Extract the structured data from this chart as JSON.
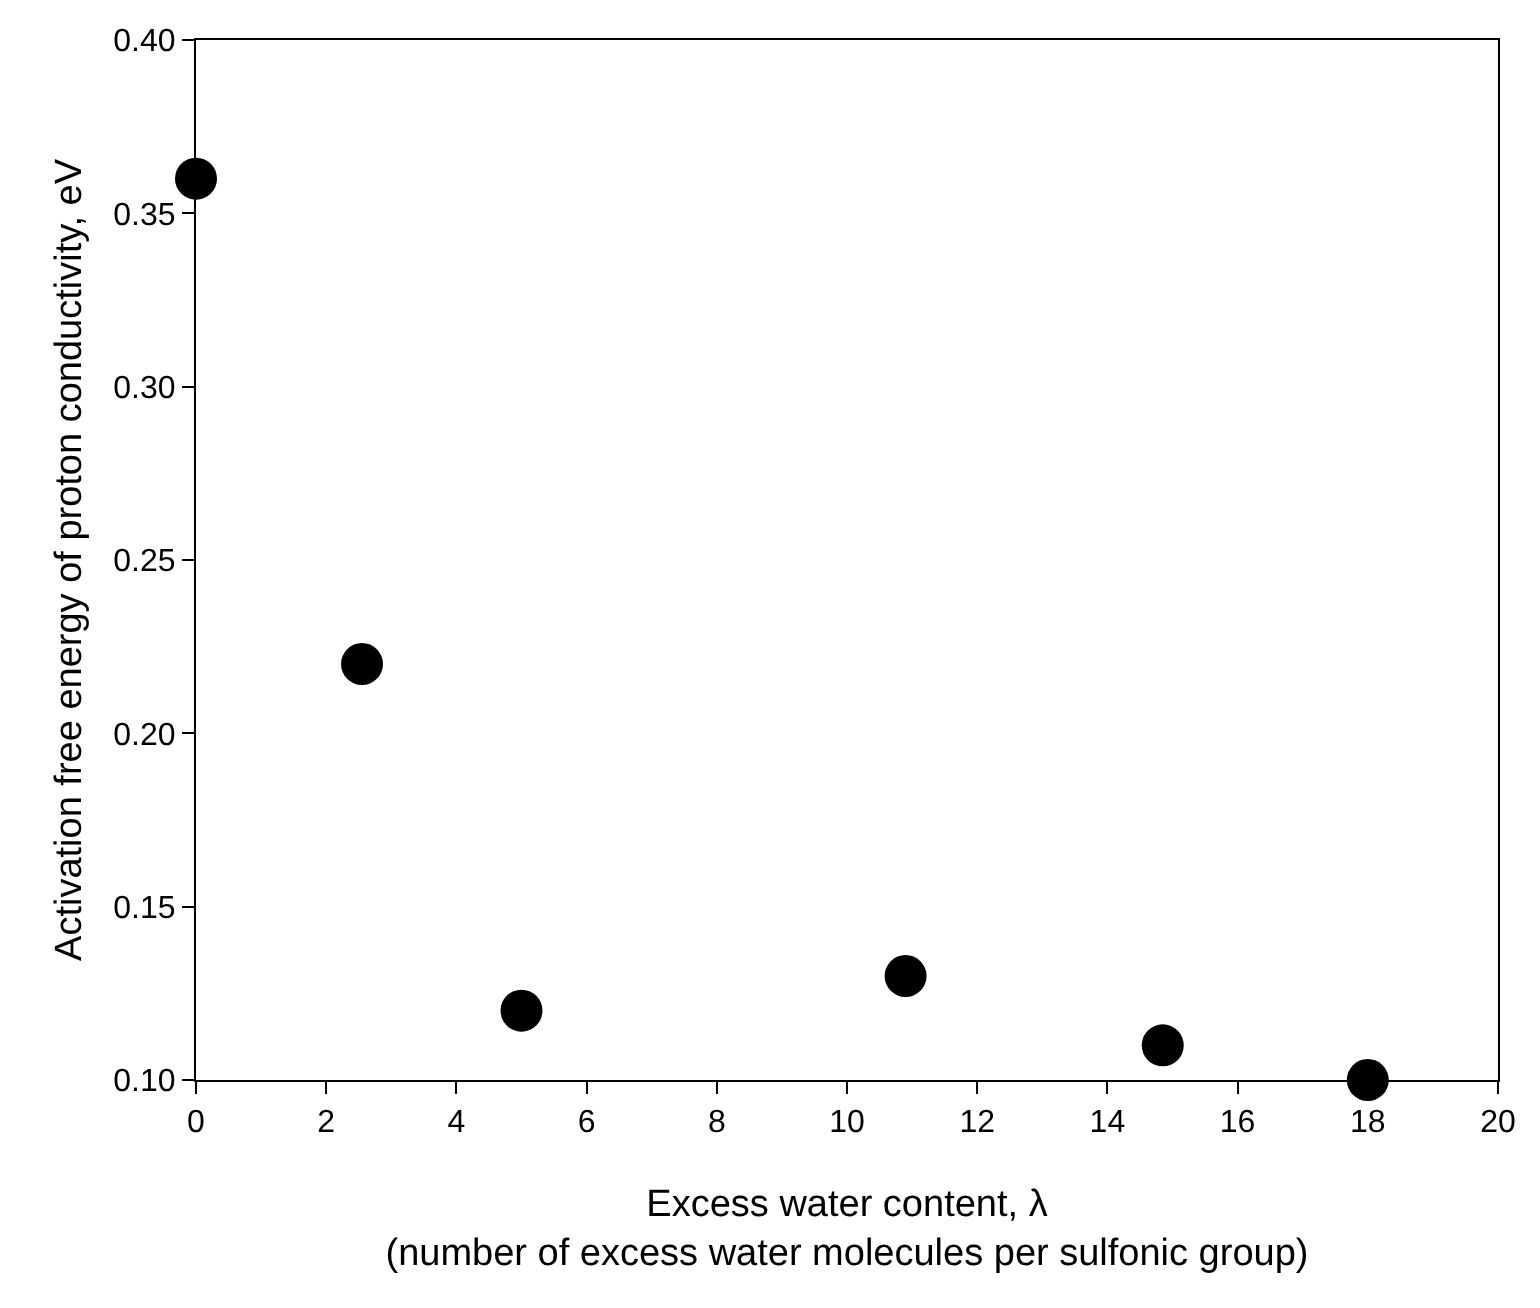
{
  "chart_data": {
    "type": "scatter",
    "xlabel": "Excess water content, λ\n(number of excess water molecules per sulfonic group)",
    "ylabel": "Activation free energy of proton conductivity, eV",
    "x": [
      0,
      2.55,
      5.0,
      10.9,
      14.85,
      18.0
    ],
    "series": [
      {
        "color": "#000000",
        "values": [
          0.36,
          0.22,
          0.12,
          0.13,
          0.11,
          0.1
        ]
      }
    ],
    "xlim": [
      0,
      20
    ],
    "xticks": [
      0,
      2,
      4,
      6,
      8,
      10,
      12,
      14,
      16,
      18,
      20
    ],
    "ylim": [
      0.1,
      0.4
    ],
    "yticks": [
      {
        "value": 0.1,
        "label": "0.10"
      },
      {
        "value": 0.15,
        "label": "0.15"
      },
      {
        "value": 0.2,
        "label": "0.20"
      },
      {
        "value": 0.25,
        "label": "0.25"
      },
      {
        "value": 0.3,
        "label": "0.30"
      },
      {
        "value": 0.35,
        "label": "0.35"
      },
      {
        "value": 0.4,
        "label": "0.40"
      }
    ],
    "marker": "circle"
  }
}
